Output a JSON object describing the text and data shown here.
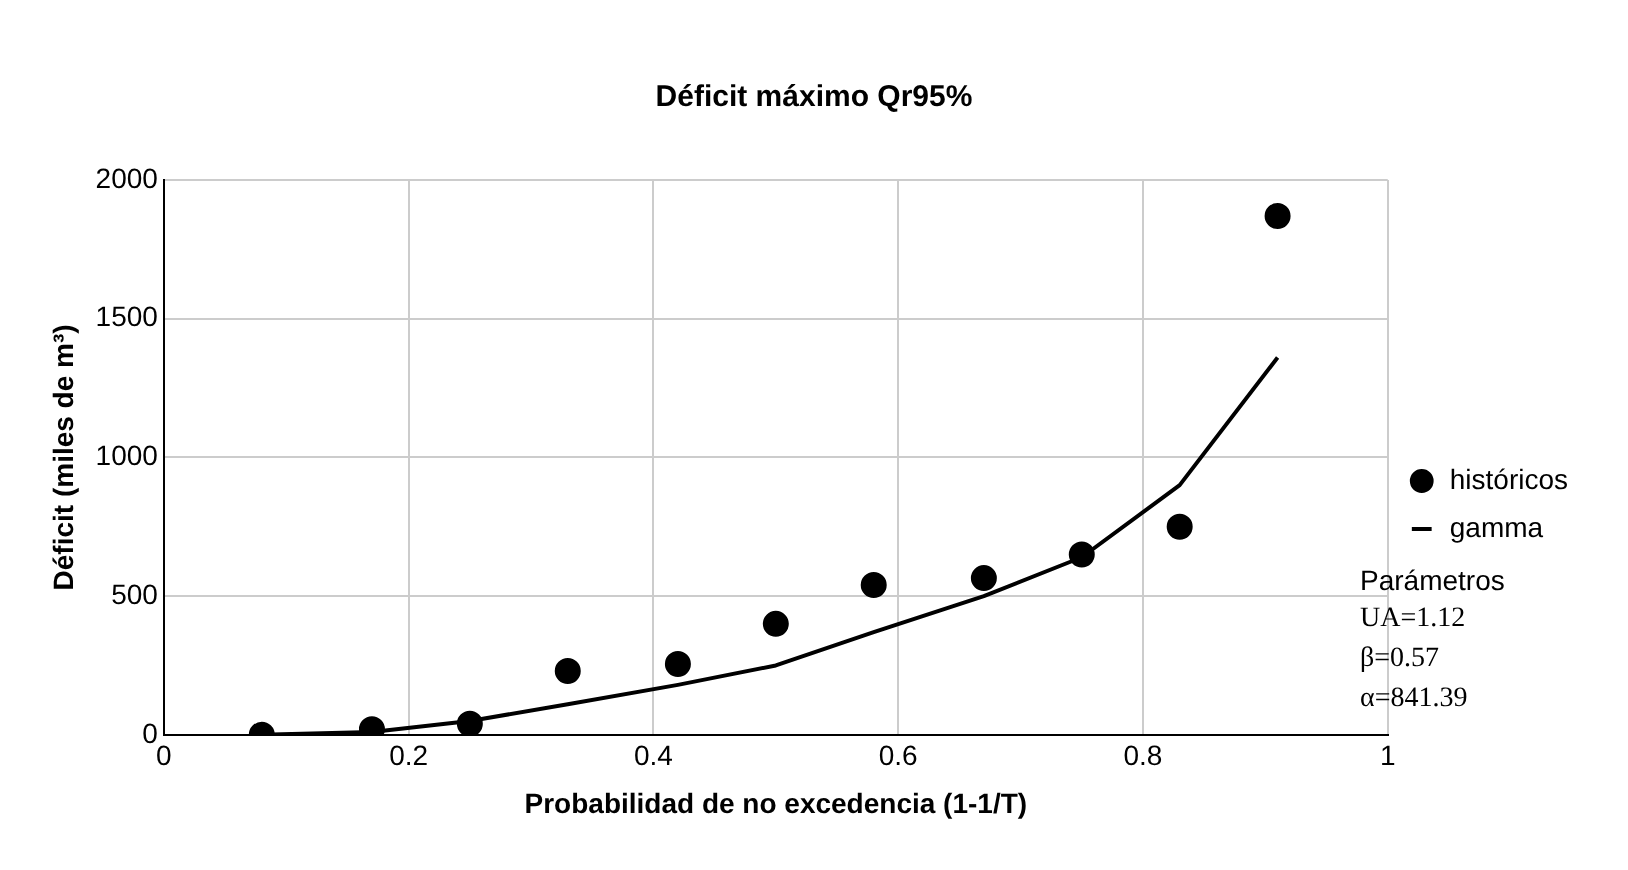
{
  "chart_data": {
    "type": "scatter",
    "title": "Déficit máximo Qr95%",
    "xlabel": "Probabilidad de no excedencia (1-1/T)",
    "ylabel": "Déficit (miles de m³)",
    "xlim": [
      0,
      1
    ],
    "xticks": [
      0,
      0.2,
      0.4,
      0.6,
      0.8,
      1
    ],
    "ylim": [
      0,
      2000
    ],
    "yticks": [
      0,
      500,
      1000,
      1500,
      2000
    ],
    "grid": true,
    "legend": "right",
    "series": [
      {
        "name": "históricos",
        "type": "scatter",
        "marker": "circle",
        "color": "#000000",
        "x": [
          0.08,
          0.17,
          0.25,
          0.33,
          0.42,
          0.5,
          0.58,
          0.67,
          0.75,
          0.83,
          0.91
        ],
        "values": [
          0,
          20,
          40,
          230,
          255,
          400,
          540,
          565,
          650,
          750,
          1870
        ]
      },
      {
        "name": "gamma",
        "type": "line",
        "marker": "none",
        "line_style": "solid",
        "color": "#000000",
        "x": [
          0.08,
          0.17,
          0.25,
          0.33,
          0.42,
          0.5,
          0.58,
          0.67,
          0.75,
          0.83,
          0.91
        ],
        "values": [
          0,
          10,
          50,
          110,
          180,
          250,
          370,
          500,
          640,
          900,
          1360
        ]
      }
    ],
    "annotations": [
      "Parámetros",
      "UA=1.12",
      "β=0.57",
      "α=841.39"
    ]
  }
}
